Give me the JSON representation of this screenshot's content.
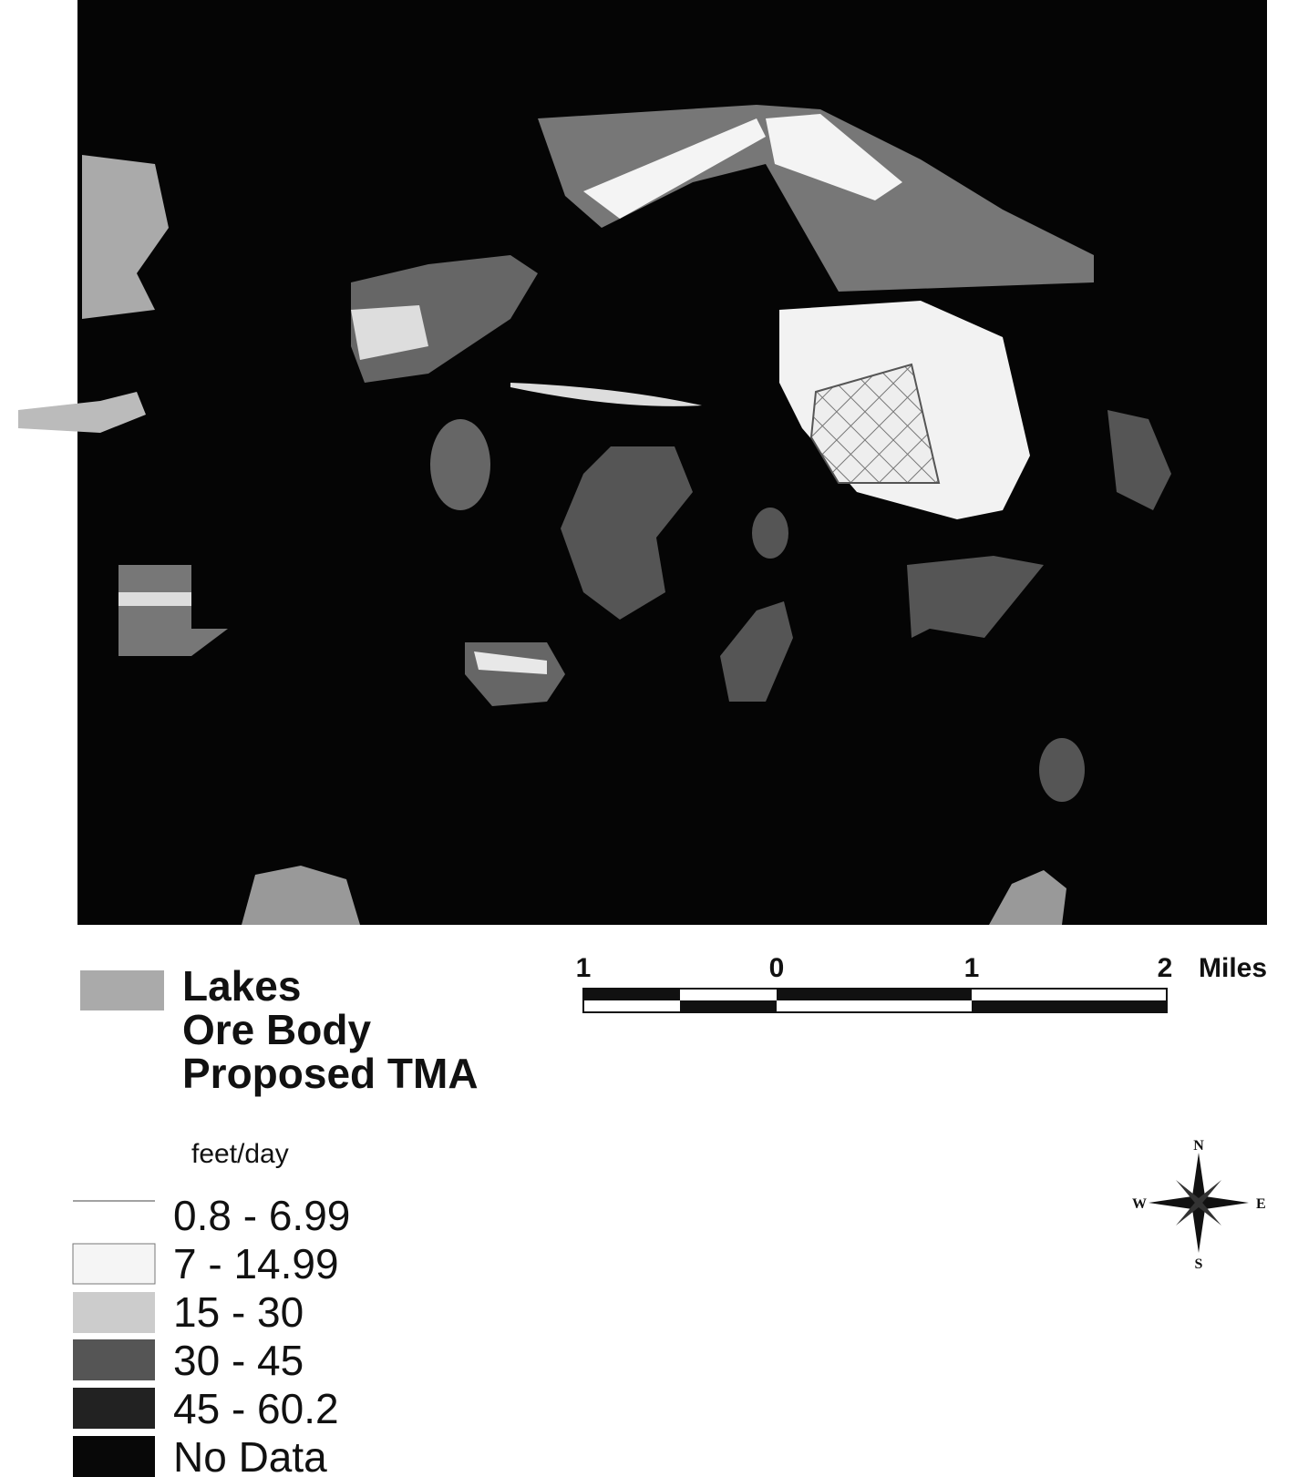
{
  "legend": {
    "features": [
      "Lakes",
      "Ore Body",
      "Proposed TMA"
    ],
    "unit": "feet/day",
    "classes": [
      "0.8 - 6.99",
      "7 - 14.99",
      "15 - 30",
      "30 - 45",
      "45 - 60.2",
      "No Data"
    ]
  },
  "scale_bar": {
    "labels": [
      "1",
      "0",
      "1",
      "2"
    ],
    "unit": "Miles"
  },
  "compass": {
    "north": "N",
    "south": "S",
    "east": "E",
    "west": "W"
  }
}
